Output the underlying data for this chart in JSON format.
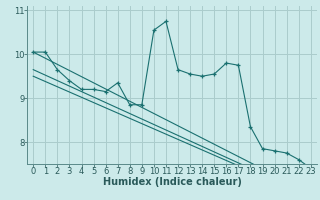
{
  "title": "",
  "xlabel": "Humidex (Indice chaleur)",
  "ylabel": "",
  "bg_color": "#cceaea",
  "grid_color": "#aacccc",
  "line_color": "#1a7070",
  "x_data": [
    0,
    1,
    2,
    3,
    4,
    5,
    6,
    7,
    8,
    9,
    10,
    11,
    12,
    13,
    14,
    15,
    16,
    17,
    18,
    19,
    20,
    21,
    22,
    23
  ],
  "y_main": [
    10.05,
    10.05,
    9.65,
    9.4,
    9.2,
    9.2,
    9.15,
    9.35,
    8.85,
    8.85,
    10.55,
    10.75,
    9.65,
    9.55,
    9.5,
    9.55,
    9.8,
    9.75,
    8.35,
    7.85,
    7.8,
    7.75,
    7.6,
    7.4
  ],
  "y_trend1": [
    10.05,
    9.91,
    9.77,
    9.63,
    9.49,
    9.35,
    9.21,
    9.07,
    8.93,
    8.79,
    8.65,
    8.51,
    8.37,
    8.23,
    8.09,
    7.95,
    7.81,
    7.67,
    7.53,
    7.39,
    7.25,
    7.11,
    6.97,
    6.83
  ],
  "y_trend2": [
    9.65,
    9.525,
    9.4,
    9.275,
    9.15,
    9.025,
    8.9,
    8.775,
    8.65,
    8.525,
    8.4,
    8.275,
    8.15,
    8.025,
    7.9,
    7.775,
    7.65,
    7.525,
    7.4,
    7.275,
    7.15,
    7.025,
    6.9,
    6.775
  ],
  "y_trend3": [
    9.5,
    9.38,
    9.26,
    9.14,
    9.02,
    8.9,
    8.78,
    8.66,
    8.54,
    8.42,
    8.3,
    8.18,
    8.06,
    7.94,
    7.82,
    7.7,
    7.58,
    7.46,
    7.34,
    7.22,
    7.1,
    6.98,
    6.86,
    6.74
  ],
  "xlim": [
    -0.5,
    23.5
  ],
  "ylim": [
    7.5,
    11.1
  ],
  "yticks": [
    8,
    9,
    10,
    11
  ],
  "xticks": [
    0,
    1,
    2,
    3,
    4,
    5,
    6,
    7,
    8,
    9,
    10,
    11,
    12,
    13,
    14,
    15,
    16,
    17,
    18,
    19,
    20,
    21,
    22,
    23
  ],
  "label_fontsize": 7,
  "tick_fontsize": 6
}
